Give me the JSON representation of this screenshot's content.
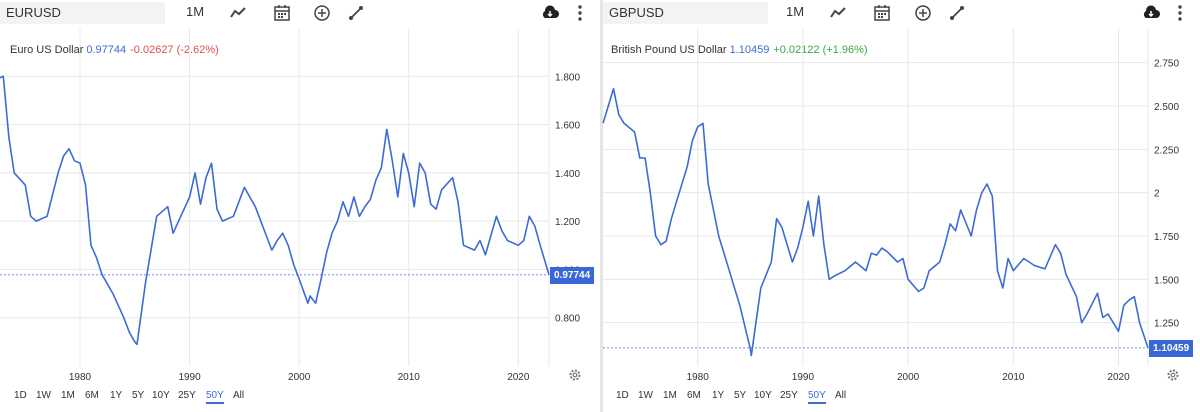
{
  "colors": {
    "line": "#3d6bd6",
    "grid": "#e8e8e8",
    "negative": "#e0514f",
    "positive": "#3aa845",
    "price_tag": "#3a67d8"
  },
  "left": {
    "symbol": "EURUSD",
    "interval": "1M",
    "title_name": "Euro US Dollar",
    "title_price": "0.97744",
    "title_change": "-0.02627 (-2.62%)",
    "price_tag": "0.97744",
    "ranges": [
      "1D",
      "1W",
      "1M",
      "6M",
      "1Y",
      "5Y",
      "10Y",
      "25Y",
      "50Y",
      "All"
    ],
    "active_range": "50Y"
  },
  "right": {
    "symbol": "GBPUSD",
    "interval": "1M",
    "title_name": "British Pound US Dollar",
    "title_price": "1.10459",
    "title_change": "+0.02122 (+1.96%)",
    "price_tag": "1.10459",
    "ranges": [
      "1D",
      "1W",
      "1M",
      "6M",
      "1Y",
      "5Y",
      "10Y",
      "25Y",
      "50Y",
      "All"
    ],
    "active_range": "50Y"
  },
  "icons": [
    "chart-type-icon",
    "calendar-icon",
    "add-indicator-icon",
    "draw-icon",
    "download-icon",
    "more-icon",
    "settings-gear-icon"
  ],
  "chart_data": [
    {
      "type": "line",
      "title": "Euro US Dollar",
      "x": [
        1971,
        1972,
        1973,
        1973.5,
        1974,
        1975,
        1975.5,
        1976,
        1977,
        1978,
        1978.5,
        1979,
        1979.5,
        1980,
        1980.5,
        1981,
        1981.5,
        1982,
        1983,
        1983.5,
        1984,
        1984.5,
        1985,
        1985.2,
        1986,
        1987,
        1988,
        1988.5,
        1989,
        1990,
        1990.5,
        1991,
        1991.5,
        1992,
        1992.5,
        1993,
        1994,
        1994.5,
        1995,
        1995.5,
        1996,
        1997,
        1997.5,
        1998,
        1998.5,
        1999,
        1999.5,
        2000,
        2000.8,
        2001,
        2001.5,
        2002,
        2002.5,
        2003,
        2003.5,
        2004,
        2004.5,
        2005,
        2005.5,
        2006,
        2006.5,
        2007,
        2007.5,
        2008,
        2008.5,
        2009,
        2009.5,
        2010,
        2010.5,
        2011,
        2011.5,
        2012,
        2012.5,
        2013,
        2014,
        2014.5,
        2015,
        2016,
        2016.5,
        2017,
        2018,
        2018.5,
        2019,
        2020,
        2020.5,
        2021,
        2021.5,
        2022,
        2022.8
      ],
      "y": [
        1.64,
        1.78,
        1.8,
        1.55,
        1.4,
        1.35,
        1.22,
        1.2,
        1.22,
        1.4,
        1.47,
        1.5,
        1.45,
        1.44,
        1.35,
        1.1,
        1.05,
        0.98,
        0.9,
        0.85,
        0.8,
        0.74,
        0.7,
        0.69,
        0.95,
        1.22,
        1.26,
        1.15,
        1.2,
        1.3,
        1.4,
        1.27,
        1.38,
        1.44,
        1.25,
        1.2,
        1.22,
        1.28,
        1.34,
        1.3,
        1.26,
        1.14,
        1.08,
        1.12,
        1.15,
        1.1,
        1.02,
        0.96,
        0.86,
        0.89,
        0.86,
        0.96,
        1.07,
        1.15,
        1.2,
        1.28,
        1.22,
        1.3,
        1.22,
        1.26,
        1.29,
        1.37,
        1.42,
        1.58,
        1.45,
        1.3,
        1.48,
        1.4,
        1.26,
        1.44,
        1.4,
        1.27,
        1.25,
        1.33,
        1.38,
        1.28,
        1.1,
        1.08,
        1.12,
        1.06,
        1.22,
        1.16,
        1.12,
        1.1,
        1.12,
        1.22,
        1.18,
        1.1,
        0.97744
      ],
      "ylim": [
        0.6,
        2.0
      ],
      "yticks": [
        "1.800",
        "1.600",
        "1.400",
        "1.200",
        "1.000",
        "0.800"
      ],
      "xticks": [
        "1980",
        "1990",
        "2000",
        "2010",
        "2020"
      ],
      "last_value": 0.97744,
      "grid": true
    },
    {
      "type": "line",
      "title": "British Pound US Dollar",
      "x": [
        1971,
        1971.5,
        1972,
        1972.5,
        1973,
        1974,
        1974.5,
        1975,
        1975.5,
        1976,
        1976.5,
        1977,
        1977.5,
        1978,
        1979,
        1979.5,
        1980,
        1980.5,
        1981,
        1981.5,
        1982,
        1983,
        1983.5,
        1984,
        1985,
        1985.1,
        1986,
        1987,
        1987.5,
        1988,
        1988.5,
        1989,
        1989.5,
        1990,
        1990.5,
        1991,
        1991.5,
        1992,
        1992.5,
        1993,
        1994,
        1995,
        1996,
        1996.5,
        1997,
        1997.5,
        1998,
        1999,
        1999.5,
        2000,
        2001,
        2001.5,
        2002,
        2003,
        2003.5,
        2004,
        2004.5,
        2005,
        2006,
        2006.5,
        2007,
        2007.5,
        2008,
        2008.5,
        2009,
        2009.5,
        2010,
        2011,
        2012,
        2013,
        2014,
        2014.5,
        2015,
        2016,
        2016.5,
        2017,
        2018,
        2018.5,
        2019,
        2020,
        2020.5,
        2021,
        2021.5,
        2022,
        2022.8
      ],
      "y": [
        2.4,
        2.5,
        2.6,
        2.45,
        2.4,
        2.35,
        2.2,
        2.2,
        2.0,
        1.75,
        1.7,
        1.72,
        1.85,
        1.95,
        2.15,
        2.3,
        2.38,
        2.4,
        2.05,
        1.9,
        1.75,
        1.55,
        1.45,
        1.35,
        1.1,
        1.06,
        1.45,
        1.6,
        1.85,
        1.8,
        1.7,
        1.6,
        1.68,
        1.8,
        1.95,
        1.75,
        1.98,
        1.7,
        1.5,
        1.52,
        1.55,
        1.6,
        1.55,
        1.65,
        1.64,
        1.68,
        1.66,
        1.6,
        1.62,
        1.5,
        1.43,
        1.45,
        1.55,
        1.6,
        1.7,
        1.82,
        1.78,
        1.9,
        1.75,
        1.9,
        2.0,
        2.05,
        1.98,
        1.55,
        1.45,
        1.62,
        1.55,
        1.62,
        1.58,
        1.56,
        1.7,
        1.65,
        1.53,
        1.4,
        1.25,
        1.3,
        1.42,
        1.28,
        1.3,
        1.2,
        1.35,
        1.38,
        1.4,
        1.25,
        1.10459
      ],
      "ylim": [
        1.0,
        2.95
      ],
      "yticks": [
        "2.750",
        "2.500",
        "2.250",
        "2",
        "1.750",
        "1.500",
        "1.250"
      ],
      "xticks": [
        "1980",
        "1990",
        "2000",
        "2010",
        "2020"
      ],
      "last_value": 1.10459,
      "grid": true
    }
  ]
}
